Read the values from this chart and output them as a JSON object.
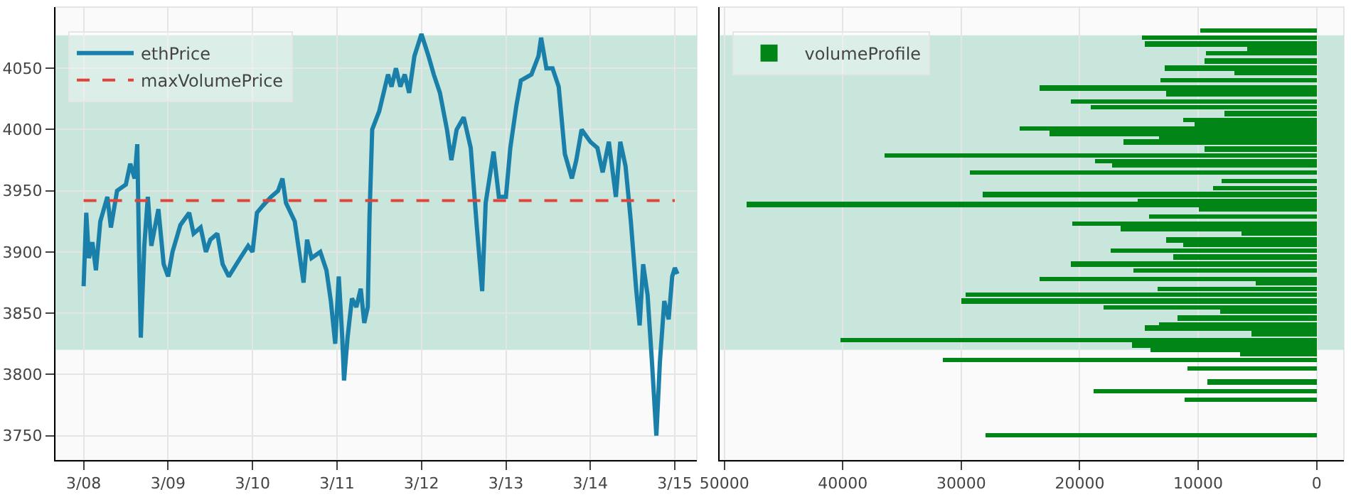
{
  "chart_data": [
    {
      "type": "line",
      "x": [
        "--03-08T00:00",
        "--03-08T00:45",
        "--03-08T01:30",
        "--03-08T02:30",
        "--03-08T03:30",
        "--03-08T04:45",
        "--03-08T06:45",
        "--03-08T07:45",
        "--03-08T09:30",
        "--03-08T12:00",
        "--03-08T13:15",
        "--03-08T14:30",
        "--03-08T15:15",
        "--03-08T15:45",
        "--03-08T16:15",
        "--03-08T17:15",
        "--03-08T18:15",
        "--03-08T19:15",
        "--03-08T21:15",
        "--03-08T22:45",
        "--03-09T00:00",
        "--03-09T01:15",
        "--03-09T03:30",
        "--03-09T06:00",
        "--03-09T07:15",
        "--03-09T09:15",
        "--03-09T10:45",
        "--03-09T12:00",
        "--03-09T14:00",
        "--03-09T15:30",
        "--03-09T17:15",
        "--03-09T20:30",
        "--03-09T22:45",
        "--03-10T00:00",
        "--03-10T01:15",
        "--03-10T03:00",
        "--03-10T05:15",
        "--03-10T07:15",
        "--03-10T08:30",
        "--03-10T09:30",
        "--03-10T12:00",
        "--03-10T13:15",
        "--03-10T14:30",
        "--03-10T15:30",
        "--03-10T16:45",
        "--03-10T19:15",
        "--03-10T21:00",
        "--03-10T22:15",
        "--03-10T23:30",
        "--03-11T00:30",
        "--03-11T01:30",
        "--03-11T02:00",
        "--03-11T03:00",
        "--03-11T04:15",
        "--03-11T05:30",
        "--03-11T06:45",
        "--03-11T07:45",
        "--03-11T08:45",
        "--03-11T09:15",
        "--03-11T10:00",
        "--03-11T12:00",
        "--03-11T13:15",
        "--03-11T14:30",
        "--03-11T15:30",
        "--03-11T16:45",
        "--03-11T18:00",
        "--03-11T19:15",
        "--03-11T20:30",
        "--03-11T22:00",
        "--03-12T00:00",
        "--03-12T02:00",
        "--03-12T03:30",
        "--03-12T05:15",
        "--03-12T07:15",
        "--03-12T08:30",
        "--03-12T10:00",
        "--03-12T12:00",
        "--03-12T14:00",
        "--03-12T15:45",
        "--03-12T17:15",
        "--03-12T18:15",
        "--03-12T20:30",
        "--03-12T22:00",
        "--03-13T00:00",
        "--03-13T01:15",
        "--03-13T03:00",
        "--03-13T04:15",
        "--03-13T07:15",
        "--03-13T09:15",
        "--03-13T10:00",
        "--03-13T11:30",
        "--03-13T13:15",
        "--03-13T15:00",
        "--03-13T16:45",
        "--03-13T18:45",
        "--03-13T20:00",
        "--03-13T21:30",
        "--03-14T00:00",
        "--03-14T02:00",
        "--03-14T03:30",
        "--03-14T05:15",
        "--03-14T07:15",
        "--03-14T08:30",
        "--03-14T10:00",
        "--03-14T11:30",
        "--03-14T13:00",
        "--03-14T14:00",
        "--03-14T15:00",
        "--03-14T16:15",
        "--03-14T17:30",
        "--03-14T18:45",
        "--03-14T19:45",
        "--03-14T21:00",
        "--03-14T22:15",
        "--03-14T23:15",
        "--03-15T00:00",
        "--03-15T00:45"
      ],
      "series": [
        {
          "name": "ethPrice",
          "color": "#1a80aa",
          "line_style": "solid",
          "values": [
            3872,
            3932,
            3895,
            3908,
            3885,
            3925,
            3945,
            3920,
            3950,
            3955,
            3972,
            3960,
            3988,
            3900,
            3830,
            3905,
            3945,
            3905,
            3935,
            3890,
            3880,
            3900,
            3922,
            3932,
            3915,
            3920,
            3900,
            3910,
            3915,
            3890,
            3880,
            3895,
            3905,
            3900,
            3932,
            3938,
            3945,
            3950,
            3960,
            3940,
            3925,
            3900,
            3875,
            3910,
            3895,
            3900,
            3885,
            3860,
            3825,
            3880,
            3830,
            3795,
            3830,
            3862,
            3855,
            3870,
            3842,
            3855,
            3930,
            4000,
            4015,
            4030,
            4045,
            4035,
            4050,
            4035,
            4045,
            4030,
            4060,
            4078,
            4060,
            4045,
            4030,
            4000,
            3975,
            4000,
            4010,
            3985,
            3920,
            3868,
            3940,
            3982,
            3945,
            3945,
            3985,
            4020,
            4040,
            4045,
            4060,
            4075,
            4050,
            4050,
            4035,
            3980,
            3960,
            3975,
            4000,
            3990,
            3985,
            3965,
            3990,
            3945,
            3990,
            3970,
            3925,
            3870,
            3840,
            3890,
            3865,
            3810,
            3750,
            3810,
            3860,
            3845,
            3880,
            3887,
            3882
          ]
        },
        {
          "name": "maxVolumePrice",
          "color": "#e0443a",
          "line_style": "dashed",
          "x": [
            "--03-08T00:00",
            "--03-15T00:00"
          ],
          "values": [
            3942,
            3942
          ]
        }
      ],
      "xlim": [
        "--03-07T16:00",
        "--03-15T06:15"
      ],
      "xticks": [
        {
          "value": "--03-08",
          "label": "3/08"
        },
        {
          "value": "--03-09",
          "label": "3/09"
        },
        {
          "value": "--03-10",
          "label": "3/10"
        },
        {
          "value": "--03-11",
          "label": "3/11"
        },
        {
          "value": "--03-12",
          "label": "3/12"
        },
        {
          "value": "--03-13",
          "label": "3/13"
        },
        {
          "value": "--03-14",
          "label": "3/14"
        },
        {
          "value": "--03-15",
          "label": "3/15"
        }
      ],
      "ylim": [
        3730,
        4100
      ],
      "yticks": [
        3750,
        3800,
        3850,
        3900,
        3950,
        4000,
        4050
      ],
      "bands": [
        {
          "axis": "y",
          "from": 3820,
          "to": 4077,
          "color": "#c8e6dc"
        }
      ],
      "grid": true,
      "legend": "top left",
      "marker": "none"
    },
    {
      "type": "bar",
      "orientation": "horizontal",
      "x": [
        4081,
        4075,
        4070,
        4066,
        4062,
        4056,
        4050,
        4046,
        4040,
        4034,
        4029,
        4023,
        4018,
        4013,
        4008,
        4004,
        4001,
        3997,
        3993,
        3990,
        3984,
        3979,
        3974,
        3971,
        3965,
        3958,
        3952,
        3947,
        3942,
        3939,
        3935,
        3929,
        3923,
        3919,
        3915,
        3910,
        3906,
        3901,
        3896,
        3890,
        3885,
        3878,
        3875,
        3870,
        3865,
        3860,
        3855,
        3851,
        3846,
        3841,
        3838,
        3833,
        3830,
        3828,
        3824,
        3820,
        3817,
        3812,
        3805,
        3794,
        3786,
        3779,
        3750
      ],
      "series": [
        {
          "name": "volumeProfile",
          "color": "#008516",
          "values": [
            9800,
            14700,
            14500,
            5900,
            9300,
            9500,
            12800,
            6900,
            13200,
            23400,
            12700,
            20800,
            19100,
            7800,
            11300,
            10300,
            25100,
            22500,
            13300,
            16300,
            9500,
            36500,
            18700,
            17300,
            29300,
            8000,
            8700,
            28200,
            15100,
            48100,
            9900,
            14100,
            20600,
            16500,
            6300,
            12700,
            11300,
            17400,
            12100,
            20700,
            15500,
            23400,
            5100,
            13400,
            29600,
            30000,
            18000,
            8100,
            11700,
            13300,
            14500,
            5500,
            null,
            40200,
            15600,
            14000,
            6500,
            31600,
            10900,
            9200,
            18800,
            11200,
            27900
          ]
        }
      ],
      "xlim": [
        50400,
        -2300
      ],
      "xticks": [
        50000,
        40000,
        30000,
        20000,
        10000,
        0
      ],
      "ylim": [
        3730,
        4100
      ],
      "bands": [
        {
          "axis": "y",
          "from": 3820,
          "to": 4077,
          "color": "#c8e6dc"
        }
      ],
      "grid": true,
      "legend": "top left",
      "tick_labels": "x"
    }
  ]
}
